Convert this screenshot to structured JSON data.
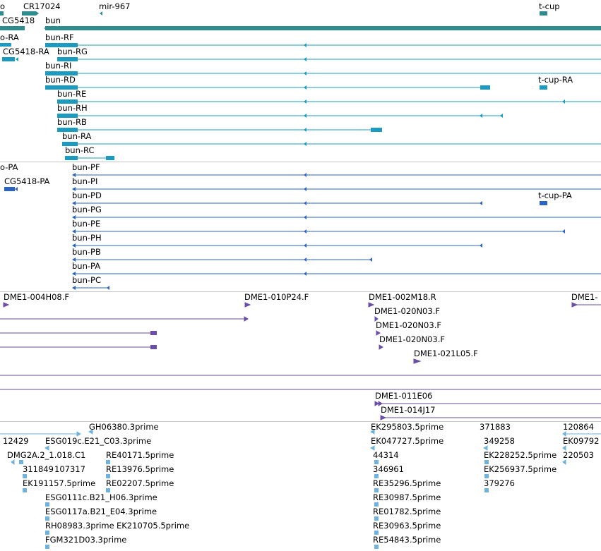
{
  "colors": {
    "gene": "#2e8c8f",
    "transcript": "#1a9bbf",
    "protein": "#2b64c4",
    "clone": "#6a4ea8",
    "est": "#6fb3dc",
    "separator": "#c4c4c4"
  },
  "tracks": {
    "genes": {
      "labels": [
        "o",
        "CR17024",
        "mir-967",
        "t-cup",
        "CG5418",
        "bun"
      ]
    },
    "transcripts": {
      "labels": [
        "o-RA",
        "bun-RF",
        "CG5418-RA",
        "bun-RG",
        "bun-RI",
        "bun-RD",
        "t-cup-RA",
        "bun-RE",
        "bun-RH",
        "bun-RB",
        "bun-RA",
        "bun-RC"
      ]
    },
    "proteins": {
      "labels": [
        "o-PA",
        "bun-PF",
        "CG5418-PA",
        "bun-PI",
        "bun-PD",
        "t-cup-PA",
        "bun-PG",
        "bun-PE",
        "bun-PH",
        "bun-PB",
        "bun-PA",
        "bun-PC"
      ]
    },
    "clones": {
      "labels": [
        "DME1-004H08.F",
        "DME1-010P24.F",
        "DME1-002M18.R",
        "DME1-",
        "DME1-020N03.F",
        "DME1-020N03.F",
        "DME1-020N03.F",
        "DME1-021L05.F",
        "DME1-011E06",
        "DME1-014J17"
      ]
    },
    "ests": {
      "labels": [
        "GH06380.3prime",
        "EK295803.5prime",
        "371883",
        "120864",
        "12429",
        "ESG019c.E21_C03.3prime",
        "EK047727.5prime",
        "349258",
        "EK09792",
        "DMG2A.2_1.018.C1",
        "RE40171.5prime",
        "44314",
        "EK228252.5prime",
        "220503",
        "311849",
        "107317",
        "RE13976.5prime",
        "346961",
        "EK256937.5prime",
        "EK191157.5prime",
        "RE02207.5prime",
        "RE35296.5prime",
        "379276",
        "ESG0111c.B21_H06.3prime",
        "RE30987.5prime",
        "ESG0117a.B21_E04.3prime",
        "RE01782.5prime",
        "RH08983.3prime",
        "EK210705.5prime",
        "RE30963.5prime",
        "FGM321D03.3prime",
        "RE54843.5prime"
      ]
    }
  }
}
